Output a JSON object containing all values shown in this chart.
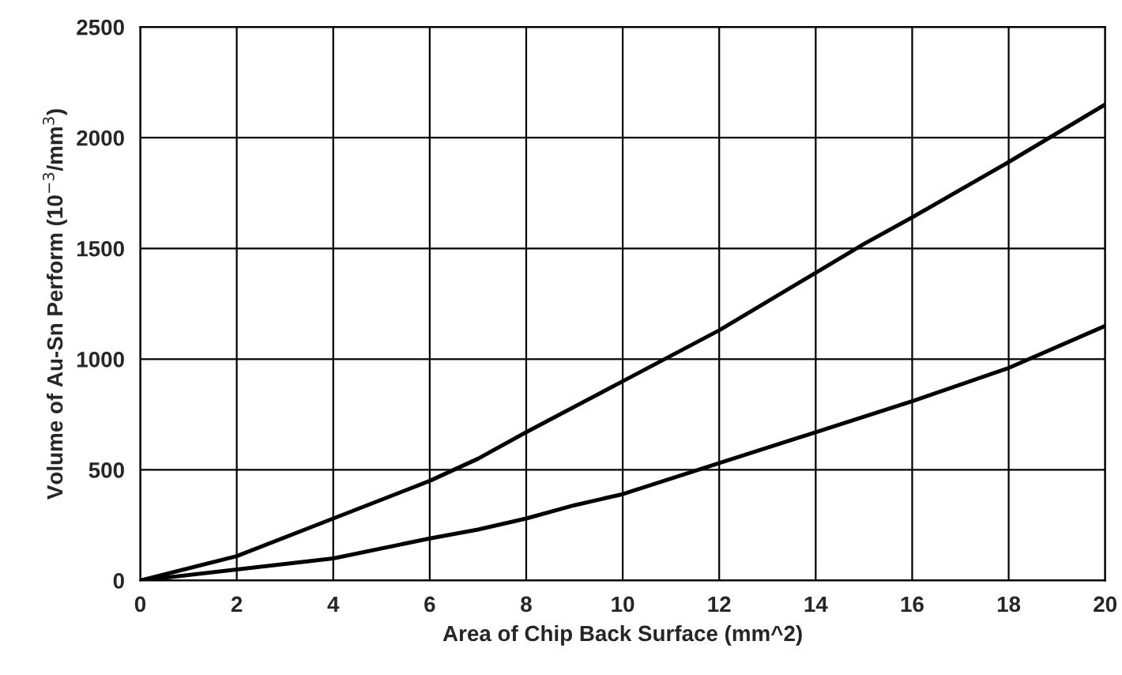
{
  "chart_data": {
    "type": "line",
    "xlabel": "Area of Chip Back Surface (mm^2)",
    "ylabel": "Volume of Au-Sn Perform (10$^{−3}$/mm$^{3}$)",
    "x": [
      0,
      2,
      4,
      6,
      7,
      8,
      10,
      12,
      14,
      15,
      16,
      18,
      20
    ],
    "series": [
      {
        "color": "#000000",
        "values": [
          0,
          110,
          280,
          450,
          550,
          670,
          900,
          1130,
          1390,
          1520,
          1640,
          1890,
          2150
        ]
      },
      {
        "color": "#000000",
        "x": [
          0,
          2,
          4,
          6,
          7,
          8,
          9,
          10,
          12,
          14,
          16,
          18,
          20
        ],
        "values": [
          0,
          50,
          100,
          190,
          230,
          280,
          340,
          390,
          530,
          670,
          810,
          960,
          1150
        ]
      }
    ],
    "xlim": [
      0,
      20
    ],
    "ylim": [
      0,
      2500
    ],
    "xticks": [
      0,
      2,
      4,
      6,
      8,
      10,
      12,
      14,
      16,
      18,
      20
    ],
    "yticks": [
      0,
      500,
      1000,
      1500,
      2000,
      2500
    ],
    "grid": true,
    "line_style": "solid",
    "marker": "none"
  }
}
